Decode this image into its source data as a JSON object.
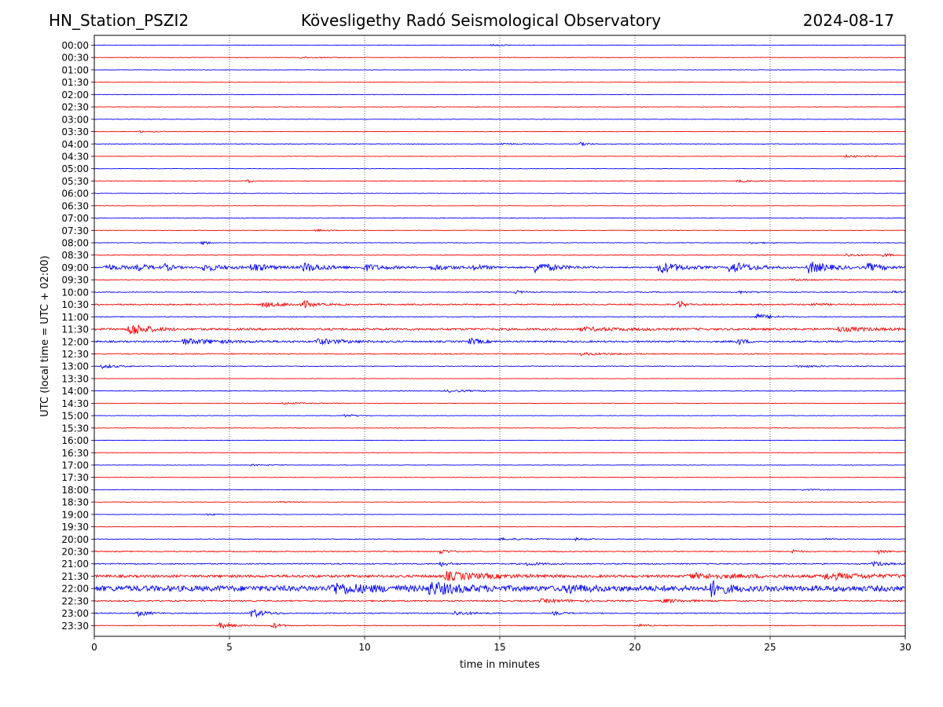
{
  "header": {
    "station": "HN_Station_PSZI2",
    "observatory": "Kövesligethy Radó Seismological Observatory",
    "date": "2024-08-17"
  },
  "chart_data": {
    "type": "line",
    "title": "Kövesligethy Radó Seismological Observatory",
    "xlabel": "time in minutes",
    "ylabel": "UTC (local time = UTC + 02:00)",
    "xlim": [
      0,
      30
    ],
    "x_ticks": [
      0,
      5,
      10,
      15,
      20,
      25,
      30
    ],
    "grid_x": [
      5,
      10,
      15,
      20,
      25
    ],
    "series_colors": [
      "#0000ff",
      "#ff0000"
    ],
    "rows": [
      {
        "label": "00:00",
        "base": 0.3,
        "events": [
          {
            "t": 14.7,
            "dur": 0.5,
            "amp": 1.2
          }
        ]
      },
      {
        "label": "00:30",
        "base": 0.3,
        "events": [
          {
            "t": 7.6,
            "dur": 0.8,
            "amp": 1.0
          }
        ]
      },
      {
        "label": "01:00",
        "base": 0.3,
        "events": []
      },
      {
        "label": "01:30",
        "base": 0.3,
        "events": []
      },
      {
        "label": "02:00",
        "base": 0.3,
        "events": []
      },
      {
        "label": "02:30",
        "base": 0.3,
        "events": []
      },
      {
        "label": "03:00",
        "base": 0.3,
        "events": []
      },
      {
        "label": "03:30",
        "base": 0.3,
        "events": [
          {
            "t": 1.7,
            "dur": 0.6,
            "amp": 1.0
          }
        ]
      },
      {
        "label": "04:00",
        "base": 0.4,
        "events": [
          {
            "t": 15.0,
            "dur": 0.6,
            "amp": 1.2
          },
          {
            "t": 18.0,
            "dur": 0.3,
            "amp": 2.0
          }
        ]
      },
      {
        "label": "04:30",
        "base": 0.3,
        "events": [
          {
            "t": 27.8,
            "dur": 0.9,
            "amp": 1.4
          }
        ]
      },
      {
        "label": "05:00",
        "base": 0.3,
        "events": []
      },
      {
        "label": "05:30",
        "base": 0.4,
        "events": [
          {
            "t": 5.7,
            "dur": 0.2,
            "amp": 2.0
          },
          {
            "t": 23.8,
            "dur": 0.7,
            "amp": 1.2
          }
        ]
      },
      {
        "label": "06:00",
        "base": 0.3,
        "events": []
      },
      {
        "label": "06:30",
        "base": 0.3,
        "events": []
      },
      {
        "label": "07:00",
        "base": 0.4,
        "events": []
      },
      {
        "label": "07:30",
        "base": 0.3,
        "events": [
          {
            "t": 8.2,
            "dur": 0.5,
            "amp": 1.2
          }
        ]
      },
      {
        "label": "08:00",
        "base": 0.4,
        "events": [
          {
            "t": 4.0,
            "dur": 0.2,
            "amp": 3.0
          },
          {
            "t": 24.2,
            "dur": 0.5,
            "amp": 1.2
          }
        ]
      },
      {
        "label": "08:30",
        "base": 0.4,
        "events": [
          {
            "t": 27.8,
            "dur": 0.4,
            "amp": 2.0
          },
          {
            "t": 29.2,
            "dur": 0.3,
            "amp": 2.5
          }
        ]
      },
      {
        "label": "09:00",
        "base": 0.8,
        "events": [
          {
            "t": 0.4,
            "dur": 0.7,
            "amp": 4.0
          },
          {
            "t": 1.6,
            "dur": 0.5,
            "amp": 4.0
          },
          {
            "t": 2.6,
            "dur": 0.4,
            "amp": 4.0
          },
          {
            "t": 4.0,
            "dur": 0.8,
            "amp": 5.0
          },
          {
            "t": 5.8,
            "dur": 0.8,
            "amp": 5.0
          },
          {
            "t": 7.7,
            "dur": 0.9,
            "amp": 6.0
          },
          {
            "t": 10.0,
            "dur": 0.9,
            "amp": 4.0
          },
          {
            "t": 12.5,
            "dur": 0.8,
            "amp": 4.0
          },
          {
            "t": 14.0,
            "dur": 0.7,
            "amp": 3.0
          },
          {
            "t": 16.3,
            "dur": 0.8,
            "amp": 7.0
          },
          {
            "t": 20.9,
            "dur": 0.8,
            "amp": 8.0
          },
          {
            "t": 23.5,
            "dur": 0.8,
            "amp": 8.0
          },
          {
            "t": 26.4,
            "dur": 0.8,
            "amp": 8.0
          },
          {
            "t": 28.6,
            "dur": 0.7,
            "amp": 5.0
          }
        ]
      },
      {
        "label": "09:30",
        "base": 0.4,
        "events": [
          {
            "t": 25.8,
            "dur": 1.2,
            "amp": 1.2
          }
        ]
      },
      {
        "label": "10:00",
        "base": 0.5,
        "events": [
          {
            "t": 15.6,
            "dur": 0.3,
            "amp": 2.0
          },
          {
            "t": 23.8,
            "dur": 0.5,
            "amp": 1.5
          },
          {
            "t": 29.5,
            "dur": 0.6,
            "amp": 1.2
          }
        ]
      },
      {
        "label": "10:30",
        "base": 0.8,
        "events": [
          {
            "t": 6.2,
            "dur": 1.2,
            "amp": 3.0
          },
          {
            "t": 7.8,
            "dur": 0.2,
            "amp": 5.0
          },
          {
            "t": 21.6,
            "dur": 0.2,
            "amp": 6.0
          },
          {
            "t": 26.6,
            "dur": 0.3,
            "amp": 2.0
          }
        ]
      },
      {
        "label": "11:00",
        "base": 0.5,
        "events": [
          {
            "t": 24.5,
            "dur": 0.5,
            "amp": 4.0
          }
        ]
      },
      {
        "label": "11:30",
        "base": 1.3,
        "events": [
          {
            "t": 1.3,
            "dur": 0.6,
            "amp": 9.0
          },
          {
            "t": 18.0,
            "dur": 1.5,
            "amp": 2.0
          },
          {
            "t": 27.5,
            "dur": 1.2,
            "amp": 2.5
          }
        ]
      },
      {
        "label": "12:00",
        "base": 1.0,
        "events": [
          {
            "t": 3.3,
            "dur": 1.5,
            "amp": 3.5
          },
          {
            "t": 8.2,
            "dur": 1.0,
            "amp": 3.5
          },
          {
            "t": 13.9,
            "dur": 0.4,
            "amp": 4.0
          },
          {
            "t": 23.8,
            "dur": 0.3,
            "amp": 4.0
          }
        ]
      },
      {
        "label": "12:30",
        "base": 0.6,
        "events": [
          {
            "t": 18.0,
            "dur": 1.2,
            "amp": 1.5
          }
        ]
      },
      {
        "label": "13:00",
        "base": 0.4,
        "events": [
          {
            "t": 0.3,
            "dur": 0.6,
            "amp": 2.5
          },
          {
            "t": 26.0,
            "dur": 1.5,
            "amp": 1.2
          }
        ]
      },
      {
        "label": "13:30",
        "base": 0.3,
        "events": []
      },
      {
        "label": "14:00",
        "base": 0.4,
        "events": [
          {
            "t": 13.0,
            "dur": 1.0,
            "amp": 1.5
          }
        ]
      },
      {
        "label": "14:30",
        "base": 0.3,
        "events": [
          {
            "t": 7.0,
            "dur": 0.8,
            "amp": 1.2
          }
        ]
      },
      {
        "label": "15:00",
        "base": 0.3,
        "events": [
          {
            "t": 9.2,
            "dur": 0.5,
            "amp": 2.0
          }
        ]
      },
      {
        "label": "15:30",
        "base": 0.3,
        "events": []
      },
      {
        "label": "16:00",
        "base": 0.3,
        "events": []
      },
      {
        "label": "16:30",
        "base": 0.3,
        "events": []
      },
      {
        "label": "17:00",
        "base": 0.3,
        "events": [
          {
            "t": 5.8,
            "dur": 0.5,
            "amp": 1.0
          }
        ]
      },
      {
        "label": "17:30",
        "base": 0.3,
        "events": []
      },
      {
        "label": "18:00",
        "base": 0.3,
        "events": [
          {
            "t": 26.2,
            "dur": 0.6,
            "amp": 1.0
          }
        ]
      },
      {
        "label": "18:30",
        "base": 0.3,
        "events": [
          {
            "t": 6.8,
            "dur": 0.4,
            "amp": 1.0
          }
        ]
      },
      {
        "label": "19:00",
        "base": 0.3,
        "events": [
          {
            "t": 4.2,
            "dur": 0.5,
            "amp": 1.0
          }
        ]
      },
      {
        "label": "19:30",
        "base": 0.3,
        "events": []
      },
      {
        "label": "20:00",
        "base": 0.4,
        "events": [
          {
            "t": 15.0,
            "dur": 1.2,
            "amp": 1.2
          },
          {
            "t": 17.8,
            "dur": 0.4,
            "amp": 1.5
          },
          {
            "t": 27.0,
            "dur": 0.2,
            "amp": 2.0
          }
        ]
      },
      {
        "label": "20:30",
        "base": 0.6,
        "events": [
          {
            "t": 12.8,
            "dur": 0.3,
            "amp": 3.5
          },
          {
            "t": 25.8,
            "dur": 0.2,
            "amp": 3.0
          },
          {
            "t": 29.0,
            "dur": 0.2,
            "amp": 3.0
          }
        ]
      },
      {
        "label": "21:00",
        "base": 0.7,
        "events": [
          {
            "t": 12.8,
            "dur": 0.3,
            "amp": 3.0
          },
          {
            "t": 16.0,
            "dur": 0.5,
            "amp": 2.0
          },
          {
            "t": 28.8,
            "dur": 0.5,
            "amp": 3.0
          }
        ]
      },
      {
        "label": "21:30",
        "base": 1.6,
        "events": [
          {
            "t": 13.0,
            "dur": 1.5,
            "amp": 5.0
          },
          {
            "t": 22.0,
            "dur": 2.0,
            "amp": 3.0
          },
          {
            "t": 27.0,
            "dur": 2.0,
            "amp": 3.5
          }
        ]
      },
      {
        "label": "22:00",
        "base": 3.5,
        "events": [
          {
            "t": 8.8,
            "dur": 1.2,
            "amp": 6.0
          },
          {
            "t": 12.4,
            "dur": 1.0,
            "amp": 7.0
          },
          {
            "t": 17.5,
            "dur": 0.5,
            "amp": 5.0
          },
          {
            "t": 22.8,
            "dur": 0.5,
            "amp": 9.0
          }
        ]
      },
      {
        "label": "22:30",
        "base": 0.8,
        "events": [
          {
            "t": 16.5,
            "dur": 1.2,
            "amp": 2.0
          },
          {
            "t": 21.0,
            "dur": 0.8,
            "amp": 2.5
          }
        ]
      },
      {
        "label": "23:00",
        "base": 0.6,
        "events": [
          {
            "t": 1.6,
            "dur": 0.4,
            "amp": 4.0
          },
          {
            "t": 5.8,
            "dur": 0.5,
            "amp": 6.0
          },
          {
            "t": 13.3,
            "dur": 0.6,
            "amp": 3.0
          },
          {
            "t": 17.0,
            "dur": 0.4,
            "amp": 2.0
          }
        ]
      },
      {
        "label": "23:30",
        "base": 0.4,
        "events": [
          {
            "t": 4.6,
            "dur": 0.5,
            "amp": 4.0
          },
          {
            "t": 6.6,
            "dur": 0.3,
            "amp": 4.0
          },
          {
            "t": 20.1,
            "dur": 0.5,
            "amp": 1.5
          }
        ]
      }
    ]
  }
}
